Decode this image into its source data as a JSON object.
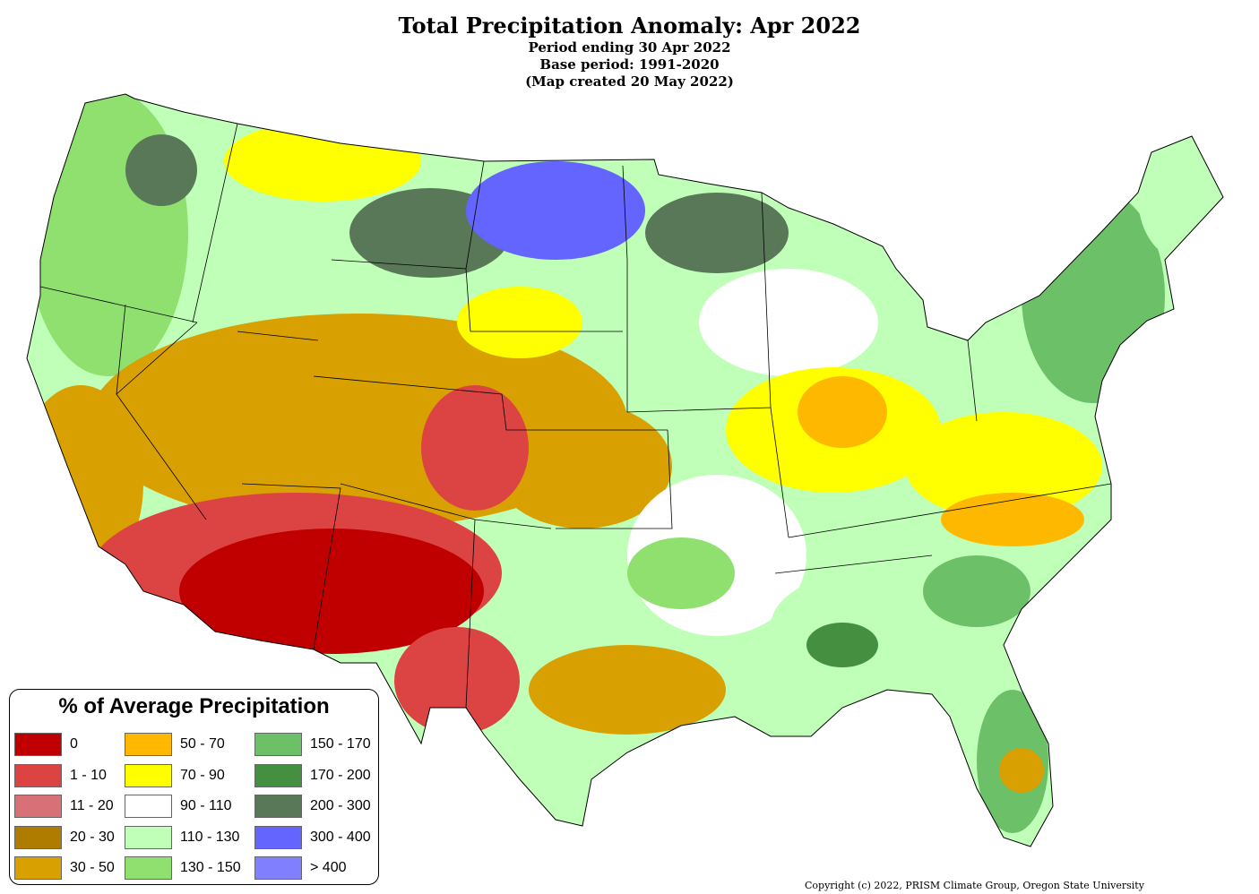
{
  "title": "Total Precipitation Anomaly: Apr 2022",
  "subtitle1": "Period ending 30 Apr 2022",
  "subtitle2": "Base period: 1991-2020",
  "subtitle3": "(Map created 20 May 2022)",
  "legend": {
    "title": "% of Average Precipitation",
    "items": [
      {
        "label": "0",
        "color": "#c00000"
      },
      {
        "label": "1 - 10",
        "color": "#dc4444"
      },
      {
        "label": "11 - 20",
        "color": "#d87078"
      },
      {
        "label": "20 - 30",
        "color": "#b07c00"
      },
      {
        "label": "30 - 50",
        "color": "#d8a000"
      },
      {
        "label": "50 - 70",
        "color": "#ffb800"
      },
      {
        "label": "70 - 90",
        "color": "#ffff00"
      },
      {
        "label": "90 - 110",
        "color": "#ffffff"
      },
      {
        "label": "110 - 130",
        "color": "#c0ffb8"
      },
      {
        "label": "130 - 150",
        "color": "#90e070"
      },
      {
        "label": "150 - 170",
        "color": "#6cc068"
      },
      {
        "label": "170 - 200",
        "color": "#449040"
      },
      {
        "label": "200 - 300",
        "color": "#587858"
      },
      {
        "label": "300 - 400",
        "color": "#6464ff"
      },
      {
        "label": "> 400",
        "color": "#8080ff"
      }
    ]
  },
  "copyright": "Copyright (c) 2022, PRISM Climate Group, Oregon State University"
}
